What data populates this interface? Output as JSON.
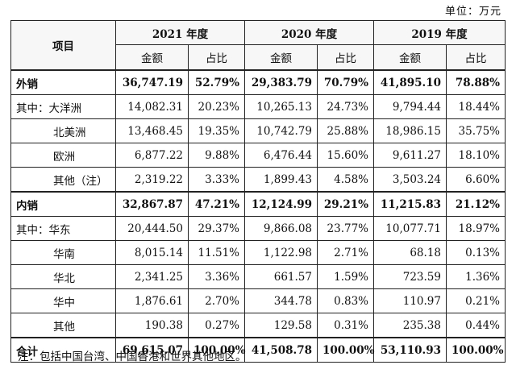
{
  "unit_label": "单位：万元",
  "header": {
    "item": "项目",
    "years": [
      "2021 年度",
      "2020 年度",
      "2019 年度"
    ],
    "amount": "金额",
    "ratio": "占比"
  },
  "rows": [
    {
      "label": "外销",
      "bold": true,
      "cells": [
        "36,747.19",
        "52.79%",
        "29,383.79",
        "70.79%",
        "41,895.10",
        "78.88%"
      ]
    },
    {
      "label": "其中：大洋洲",
      "cells": [
        "14,082.31",
        "20.23%",
        "10,265.13",
        "24.73%",
        "9,794.44",
        "18.44%"
      ]
    },
    {
      "label": "北美洲",
      "indent": true,
      "cells": [
        "13,468.45",
        "19.35%",
        "10,742.79",
        "25.88%",
        "18,986.15",
        "35.75%"
      ]
    },
    {
      "label": "欧洲",
      "indent": true,
      "cells": [
        "6,877.22",
        "9.88%",
        "6,476.44",
        "15.60%",
        "9,611.27",
        "18.10%"
      ]
    },
    {
      "label": "其他（注）",
      "indent": true,
      "cells": [
        "2,319.22",
        "3.33%",
        "1,899.43",
        "4.58%",
        "3,503.24",
        "6.60%"
      ]
    },
    {
      "label": "内销",
      "bold": true,
      "cells": [
        "32,867.87",
        "47.21%",
        "12,124.99",
        "29.21%",
        "11,215.83",
        "21.12%"
      ]
    },
    {
      "label": "其中：华东",
      "cells": [
        "20,444.50",
        "29.37%",
        "9,866.08",
        "23.77%",
        "10,077.71",
        "18.97%"
      ]
    },
    {
      "label": "华南",
      "indent": true,
      "cells": [
        "8,015.14",
        "11.51%",
        "1,122.98",
        "2.71%",
        "68.18",
        "0.13%"
      ]
    },
    {
      "label": "华北",
      "indent": true,
      "cells": [
        "2,341.25",
        "3.36%",
        "661.57",
        "1.59%",
        "723.59",
        "1.36%"
      ]
    },
    {
      "label": "华中",
      "indent": true,
      "cells": [
        "1,876.61",
        "2.70%",
        "344.78",
        "0.83%",
        "110.97",
        "0.21%"
      ]
    },
    {
      "label": "其他",
      "indent": true,
      "cells": [
        "190.38",
        "0.27%",
        "129.58",
        "0.31%",
        "235.38",
        "0.44%"
      ]
    },
    {
      "label": "合计",
      "bold": true,
      "cells": [
        "69,615.07",
        "100.00%",
        "41,508.78",
        "100.00%",
        "53,110.93",
        "100.00%"
      ]
    }
  ],
  "note": "注：包括中国台湾、中国香港和世界其他地区。"
}
